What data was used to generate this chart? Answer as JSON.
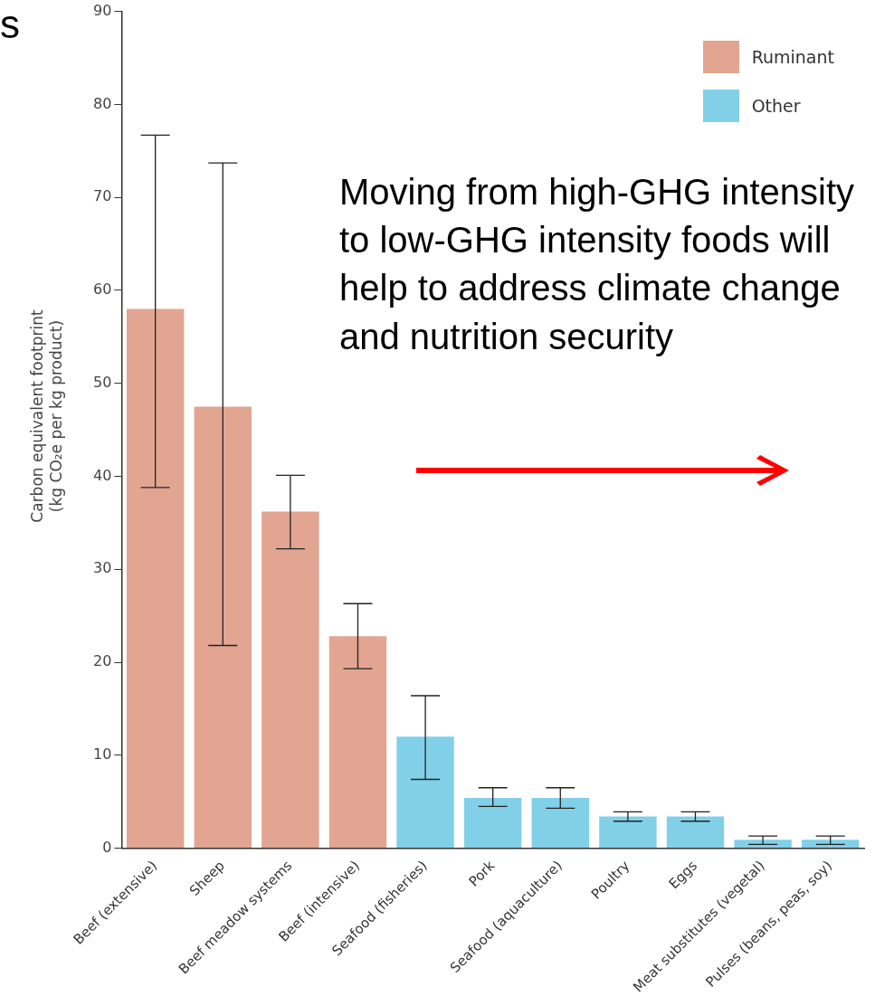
{
  "chart_data": {
    "type": "bar",
    "ylabel": "Carbon equivalent footprint (kg CO₂e per kg product)",
    "categories": [
      "Beef (extensive)",
      "Sheep",
      "Beef meadow systems",
      "Beef (intensive)",
      "Seafood (fisheries)",
      "Pork",
      "Seafood (aquaculture)",
      "Poultry",
      "Eggs",
      "Meat substitutes (vegetal)",
      "Pulses (beans, peas, soy)"
    ],
    "series": [
      {
        "name": "Ruminant",
        "color": "#e2a591",
        "values": [
          58,
          47.5,
          36.2,
          22.8,
          null,
          null,
          null,
          null,
          null,
          null,
          null
        ],
        "errors": [
          [
            38.8,
            76.7
          ],
          [
            21.8,
            73.7
          ],
          [
            32.2,
            40.1
          ],
          [
            19.3,
            26.3
          ],
          null,
          null,
          null,
          null,
          null,
          null,
          null
        ]
      },
      {
        "name": "Other",
        "color": "#82d0e8",
        "values": [
          null,
          null,
          null,
          null,
          12,
          5.4,
          5.4,
          3.4,
          3.4,
          0.9,
          0.9
        ],
        "errors": [
          null,
          null,
          null,
          null,
          [
            7.4,
            16.4
          ],
          [
            4.5,
            6.5
          ],
          [
            4.3,
            6.5
          ],
          [
            2.9,
            3.9
          ],
          [
            2.9,
            3.9
          ],
          [
            0.4,
            1.3
          ],
          [
            0.4,
            1.3
          ]
        ]
      }
    ],
    "ylim": [
      0,
      90
    ],
    "yticks": [
      0,
      10,
      20,
      30,
      40,
      50,
      60,
      70,
      80,
      90
    ],
    "grid": false,
    "legend": "top right",
    "annotations": [
      "s",
      "Moving from high-GHG intensity to low-GHG intensity foods will help to address climate change and nutrition security"
    ]
  }
}
